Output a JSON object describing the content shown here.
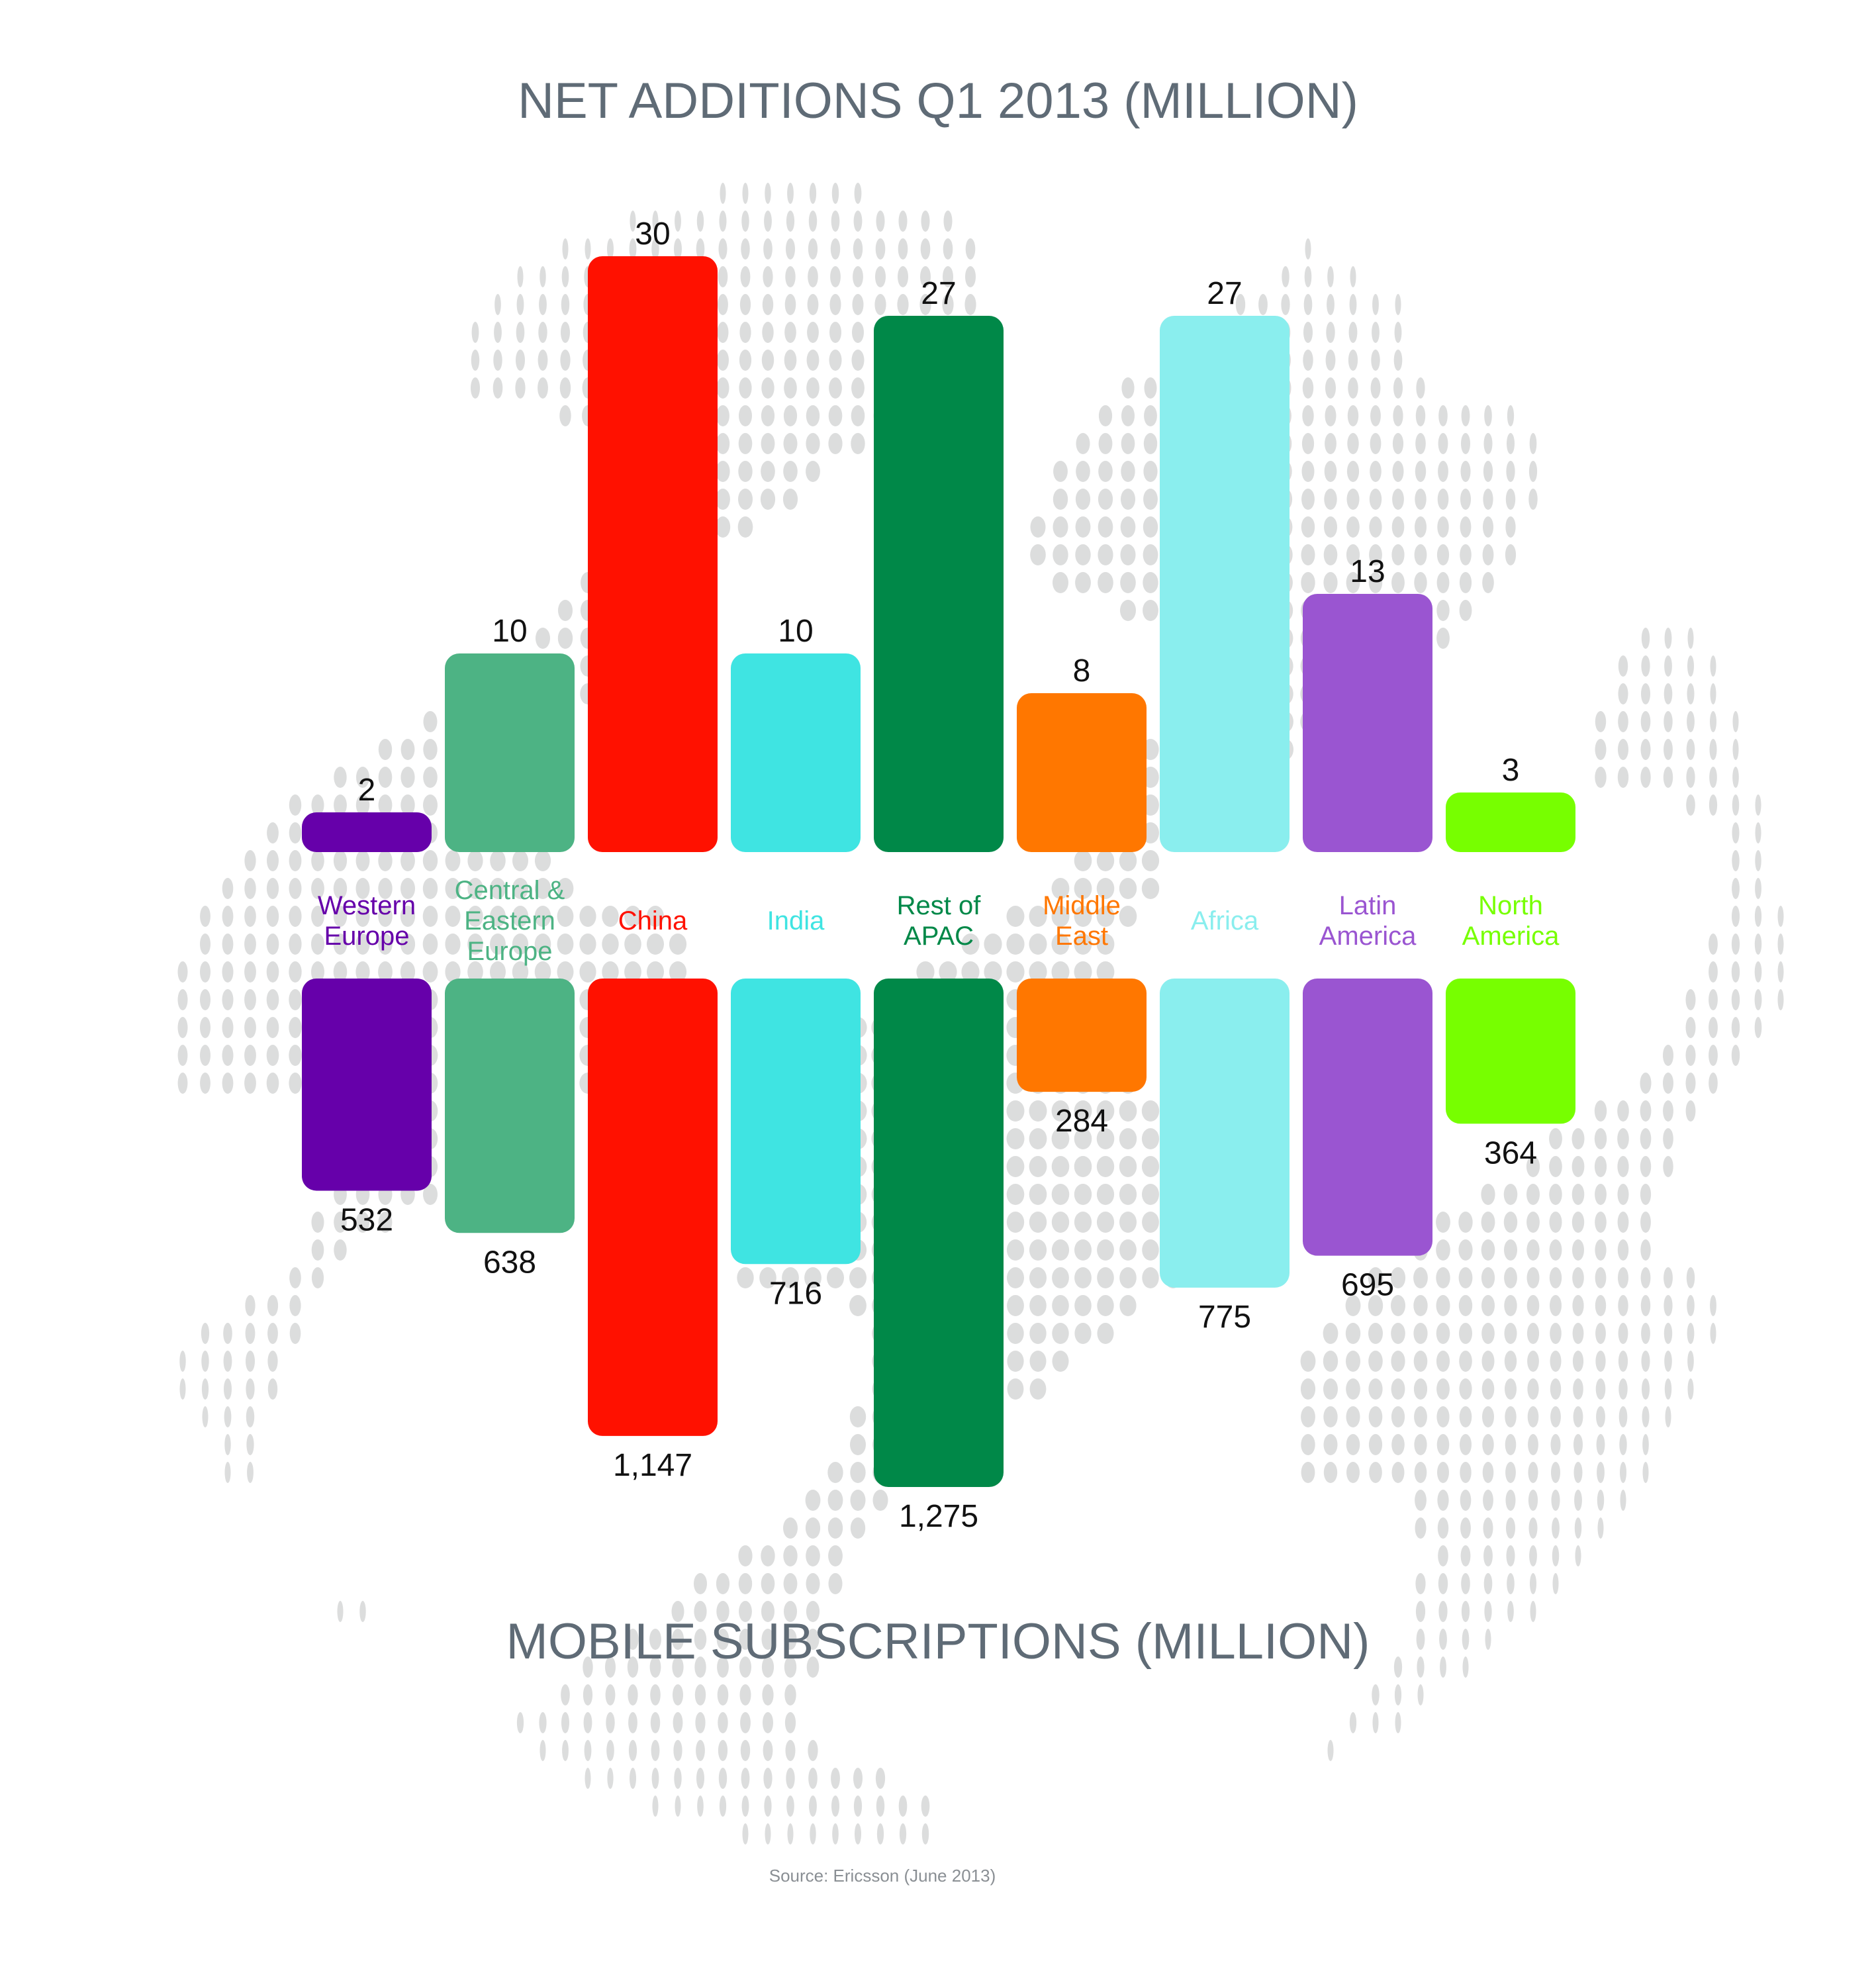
{
  "colors": {
    "globe_dots": "#dcdddd",
    "title": "#5f6b76",
    "value_text": "#111111",
    "source_text": "#8a8f94"
  },
  "chart_data": {
    "type": "bar",
    "title": "NET ADDITIONS Q1 2013 (MILLION)",
    "subtitle": "MOBILE SUBSCRIPTIONS (MILLION)",
    "source": "Source: Ericsson (June 2013)",
    "grid": false,
    "legend": "none",
    "categories": [
      {
        "lines": [
          "Western",
          "Europe"
        ],
        "color": "#6600aa"
      },
      {
        "lines": [
          "Central &",
          "Eastern",
          "Europe"
        ],
        "color": "#4db384"
      },
      {
        "lines": [
          "China"
        ],
        "color": "#ff1100"
      },
      {
        "lines": [
          "India"
        ],
        "color": "#3fe4e2"
      },
      {
        "lines": [
          "Rest of",
          "APAC"
        ],
        "color": "#008848"
      },
      {
        "lines": [
          "Middle",
          "East"
        ],
        "color": "#ff7700"
      },
      {
        "lines": [
          "Africa"
        ],
        "color": "#8aeeee"
      },
      {
        "lines": [
          "Latin",
          "America"
        ],
        "color": "#9a55d1"
      },
      {
        "lines": [
          "North",
          "America"
        ],
        "color": "#77ff00"
      }
    ],
    "series": [
      {
        "name": "NET ADDITIONS Q1 2013 (MILLION)",
        "direction": "up",
        "values": [
          2,
          10,
          30,
          10,
          27,
          8,
          27,
          13,
          3
        ],
        "labels": [
          "2",
          "10",
          "30",
          "10",
          "27",
          "8",
          "27",
          "13",
          "3"
        ]
      },
      {
        "name": "MOBILE SUBSCRIPTIONS (MILLION)",
        "direction": "down",
        "values": [
          532,
          638,
          1147,
          716,
          1275,
          284,
          775,
          695,
          364
        ],
        "labels": [
          "532",
          "638",
          "1,147",
          "716",
          "1,275",
          "284",
          "775",
          "695",
          "364"
        ]
      }
    ]
  }
}
